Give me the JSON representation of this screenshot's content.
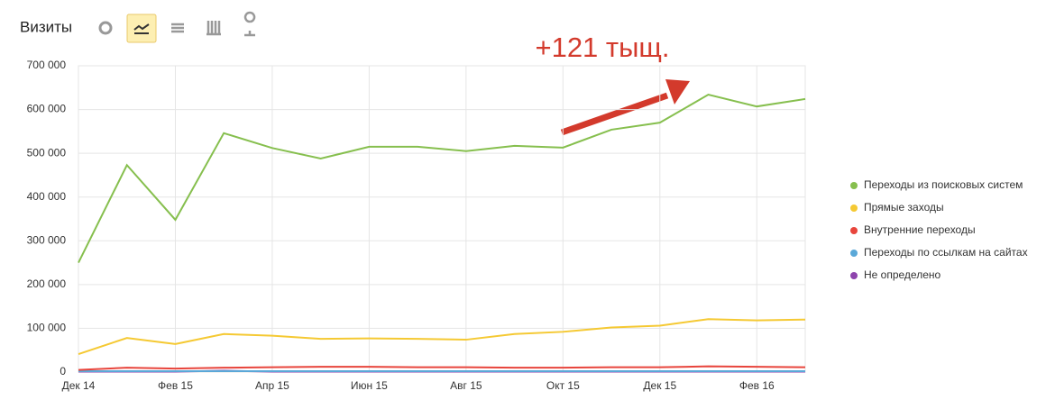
{
  "header": {
    "title": "Визиты"
  },
  "chart_data": {
    "type": "line",
    "annotation": "+121 тыщ.",
    "categories": [
      "Дек 14",
      null,
      "Фев 15",
      null,
      "Апр 15",
      null,
      "Июн 15",
      null,
      "Авг 15",
      null,
      "Окт 15",
      null,
      "Дек 15",
      null,
      "Фев 16",
      null
    ],
    "series": [
      {
        "name": "Переходы из поисковых систем",
        "color": "#86bf4e",
        "values": [
          250000,
          473000,
          348000,
          546000,
          512000,
          488000,
          515000,
          515000,
          505000,
          517000,
          513000,
          554000,
          570000,
          634000,
          607000,
          624000
        ]
      },
      {
        "name": "Прямые заходы",
        "color": "#f5c933",
        "values": [
          41000,
          78000,
          64000,
          87000,
          83000,
          76000,
          77000,
          76000,
          74000,
          87000,
          92000,
          102000,
          106000,
          121000,
          118000,
          120000
        ]
      },
      {
        "name": "Внутренние переходы",
        "color": "#e8453c",
        "values": [
          5000,
          10000,
          8000,
          10000,
          11000,
          12000,
          12000,
          11000,
          11000,
          10000,
          10000,
          11000,
          11000,
          13000,
          12000,
          11000
        ]
      },
      {
        "name": "Переходы по ссылкам на сайтах",
        "color": "#5aa8d8",
        "values": [
          2000,
          2000,
          2000,
          2000,
          2000,
          2000,
          2000,
          2000,
          2000,
          2000,
          2000,
          2000,
          2000,
          2000,
          2000,
          2000
        ]
      },
      {
        "name": "Не определено",
        "color": "#8e44ad",
        "values": [
          1000,
          1000,
          1000,
          3000,
          1000,
          1000,
          1000,
          1000,
          1000,
          1000,
          1000,
          1000,
          1000,
          1000,
          1000,
          1000
        ]
      }
    ],
    "ylim": [
      0,
      700000
    ],
    "yticks": [
      0,
      {
        "value": 100000,
        "label": "100 000"
      },
      {
        "value": 200000,
        "label": "200 000"
      },
      {
        "value": 300000,
        "label": "300 000"
      },
      {
        "value": 400000,
        "label": "400 000"
      },
      {
        "value": 500000,
        "label": "500 000"
      },
      {
        "value": 600000,
        "label": "600 000"
      },
      {
        "value": 700000,
        "label": "700 000"
      }
    ],
    "grid": true,
    "legend": "right"
  }
}
